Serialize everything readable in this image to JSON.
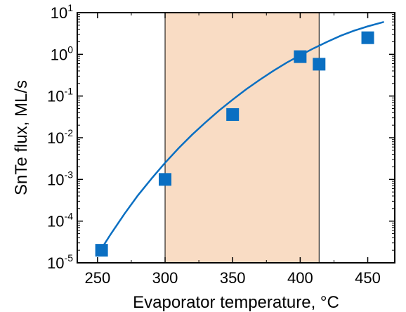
{
  "chart_data": {
    "type": "scatter",
    "title": "",
    "xlabel": "Evaporator temperature, °C",
    "ylabel": "SnTe flux, ML/s",
    "xlim": [
      235,
      470
    ],
    "ylim": [
      1e-05,
      10
    ],
    "yscale": "log",
    "x_ticks": [
      250,
      300,
      350,
      400,
      450
    ],
    "y_ticks": [
      {
        "value": 1e-05,
        "base": "10",
        "exp": "-5"
      },
      {
        "value": 0.0001,
        "base": "10",
        "exp": "-4"
      },
      {
        "value": 0.001,
        "base": "10",
        "exp": "-3"
      },
      {
        "value": 0.01,
        "base": "10",
        "exp": "-2"
      },
      {
        "value": 0.1,
        "base": "10",
        "exp": "-1"
      },
      {
        "value": 1,
        "base": "10",
        "exp": "0"
      },
      {
        "value": 10,
        "base": "10",
        "exp": "1"
      }
    ],
    "grid": false,
    "shaded_region": {
      "x": [
        300,
        414
      ],
      "color": "#f9dcc4"
    },
    "series": [
      {
        "marker": "square",
        "color": "#0a6fc2",
        "points": [
          {
            "x": 253,
            "y": 2e-05
          },
          {
            "x": 300,
            "y": 0.001
          },
          {
            "x": 350,
            "y": 0.036
          },
          {
            "x": 400,
            "y": 0.88
          },
          {
            "x": 414,
            "y": 0.58
          },
          {
            "x": 450,
            "y": 2.5
          }
        ]
      },
      {
        "type": "line",
        "color": "#0a6fc2",
        "x": [
          253,
          260,
          270,
          280,
          290,
          300,
          310,
          320,
          330,
          340,
          350,
          360,
          370,
          380,
          390,
          400,
          410,
          420,
          430,
          440,
          450,
          462
        ],
        "y": [
          2.2e-05,
          5e-05,
          0.00015,
          0.00042,
          0.00105,
          0.0025,
          0.0056,
          0.0118,
          0.0235,
          0.045,
          0.082,
          0.145,
          0.245,
          0.4,
          0.63,
          0.95,
          1.4,
          2.0,
          2.8,
          3.7,
          4.7,
          6.0
        ]
      }
    ]
  },
  "colors": {
    "series": "#0a6fc2",
    "shade": "#f9dcc4",
    "axis": "#000000"
  }
}
